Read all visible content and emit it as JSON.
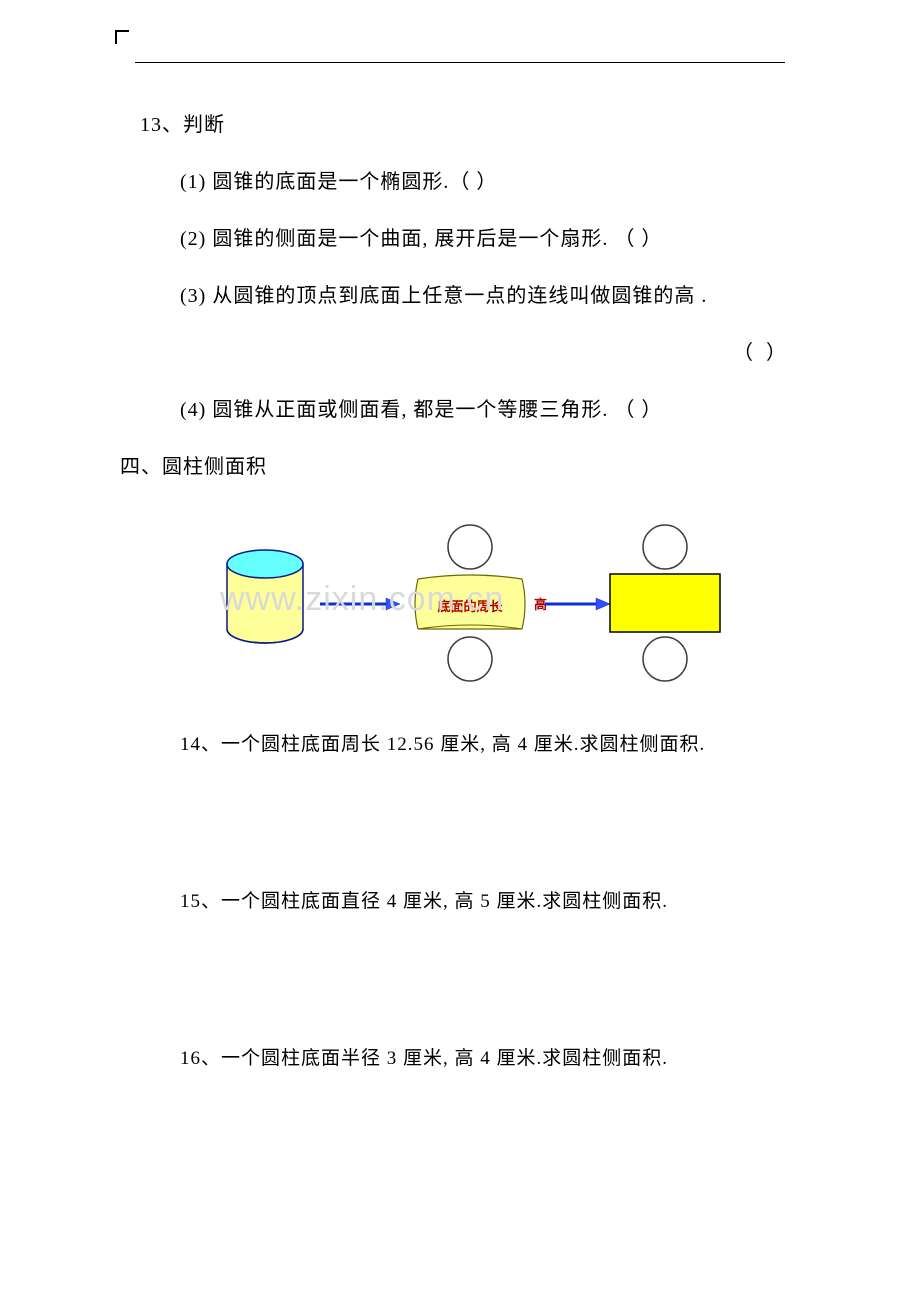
{
  "q13": {
    "number": "13、判断",
    "items": [
      "(1) 圆锥的底面是一个椭圆形.（          ）",
      "(2) 圆锥的侧面是一个曲面, 展开后是一个扇形. （        ）",
      "(3) 从圆锥的顶点到底面上任意一点的连线叫做圆锥的高      .",
      "（          ）",
      "(4) 圆锥从正面或侧面看, 都是一个等腰三角形. （        ）"
    ]
  },
  "section4_title": "四、圆柱侧面积",
  "diagram": {
    "cylinder": {
      "top_fill": "#66ffff",
      "top_stroke": "#0a1a8a",
      "side_fill": "#ffff99",
      "side_stroke": "#0a1a8a",
      "bottom_stroke": "#0a1a8a"
    },
    "arrow_color": "#1030d0",
    "arrow_fill": "#3050ff",
    "unrolled": {
      "rect_fill": "#ffff99",
      "rect_stroke": "#6a6a00",
      "circle_stroke": "#404040",
      "label_perimeter": "底面的周长",
      "label_height": "高",
      "label_color": "#b00000",
      "label_fontsize": 13
    },
    "flat": {
      "rect_fill": "#ffff00",
      "rect_stroke": "#000000",
      "circle_stroke": "#404040"
    }
  },
  "q14": "14、一个圆柱底面周长 12.56 厘米, 高 4 厘米.求圆柱侧面积.",
  "q15": "15、一个圆柱底面直径 4 厘米, 高 5 厘米.求圆柱侧面积.",
  "q16": "16、一个圆柱底面半径 3 厘米, 高 4 厘米.求圆柱侧面积.",
  "watermark": "www.zixin.com.cn"
}
